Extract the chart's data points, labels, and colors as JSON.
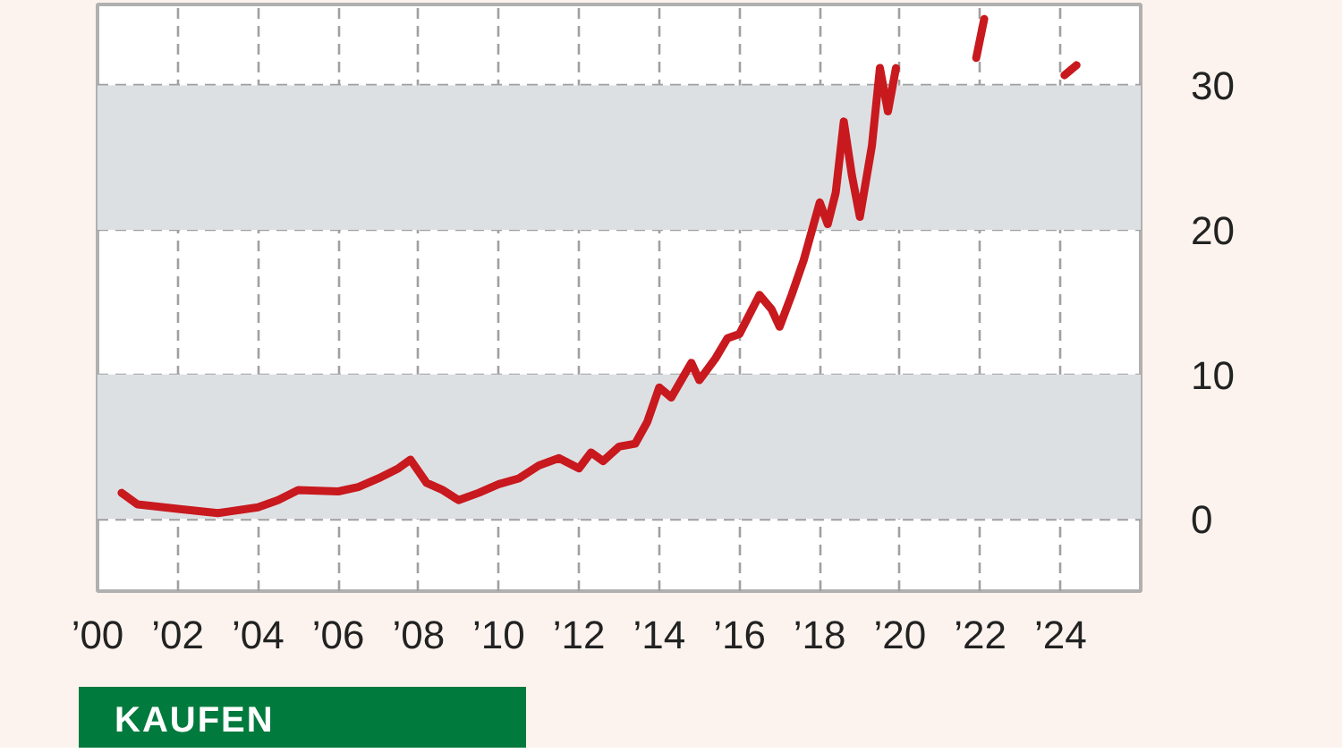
{
  "chart_data": {
    "type": "line",
    "x": [
      2000.6,
      2001.0,
      2002.0,
      2003.0,
      2004.0,
      2004.5,
      2005.0,
      2006.0,
      2006.5,
      2007.0,
      2007.5,
      2007.8,
      2008.2,
      2008.6,
      2009.0,
      2009.5,
      2010.0,
      2010.5,
      2011.0,
      2011.5,
      2012.0,
      2012.3,
      2012.6,
      2013.0,
      2013.4,
      2013.7,
      2014.0,
      2014.3,
      2014.8,
      2015.0,
      2015.4,
      2015.7,
      2016.0,
      2016.5,
      2016.8,
      2017.0,
      2017.3,
      2017.6,
      2018.0,
      2018.2,
      2018.4,
      2018.6,
      2018.8,
      2019.0,
      2019.3,
      2019.5,
      2019.7,
      2019.9,
      2020.5,
      2021.9,
      2022.1,
      2023.0,
      2024.1,
      2024.4
    ],
    "series": [
      {
        "color": "#c8191e",
        "values": [
          1.8,
          1.0,
          0.7,
          0.4,
          0.8,
          1.3,
          2.0,
          1.9,
          2.2,
          2.8,
          3.5,
          4.1,
          2.5,
          2.0,
          1.3,
          1.8,
          2.4,
          2.8,
          3.7,
          4.2,
          3.5,
          4.6,
          4.0,
          5.0,
          5.2,
          6.7,
          9.1,
          8.4,
          10.8,
          9.6,
          11.1,
          12.5,
          12.8,
          15.5,
          14.5,
          13.3,
          15.5,
          17.9,
          21.9,
          20.4,
          22.6,
          27.5,
          23.8,
          20.9,
          25.8,
          31.2,
          28.2,
          31.2,
          null,
          31.9,
          34.6,
          null,
          30.7,
          31.4
        ]
      }
    ],
    "xlim": [
      2000,
      2026
    ],
    "xticks": [
      {
        "value": 2000,
        "label": "’00"
      },
      {
        "value": 2002,
        "label": "’02"
      },
      {
        "value": 2004,
        "label": "’04"
      },
      {
        "value": 2006,
        "label": "’06"
      },
      {
        "value": 2008,
        "label": "’08"
      },
      {
        "value": 2010,
        "label": "’10"
      },
      {
        "value": 2012,
        "label": "’12"
      },
      {
        "value": 2014,
        "label": "’14"
      },
      {
        "value": 2016,
        "label": "’16"
      },
      {
        "value": 2018,
        "label": "’18"
      },
      {
        "value": 2020,
        "label": "’20"
      },
      {
        "value": 2022,
        "label": "’22"
      },
      {
        "value": 2024,
        "label": "’24"
      }
    ],
    "ylim": [
      -5,
      35.6
    ],
    "yticks": [
      0,
      10,
      20,
      30
    ],
    "bands": [
      {
        "axis": "y",
        "from": 0,
        "to": 10,
        "color": "#dde0e3"
      },
      {
        "axis": "y",
        "from": 20,
        "to": 30,
        "color": "#dde0e3"
      }
    ],
    "grid": true,
    "line_style": "solid",
    "annotations": [
      "KAUFEN"
    ]
  }
}
